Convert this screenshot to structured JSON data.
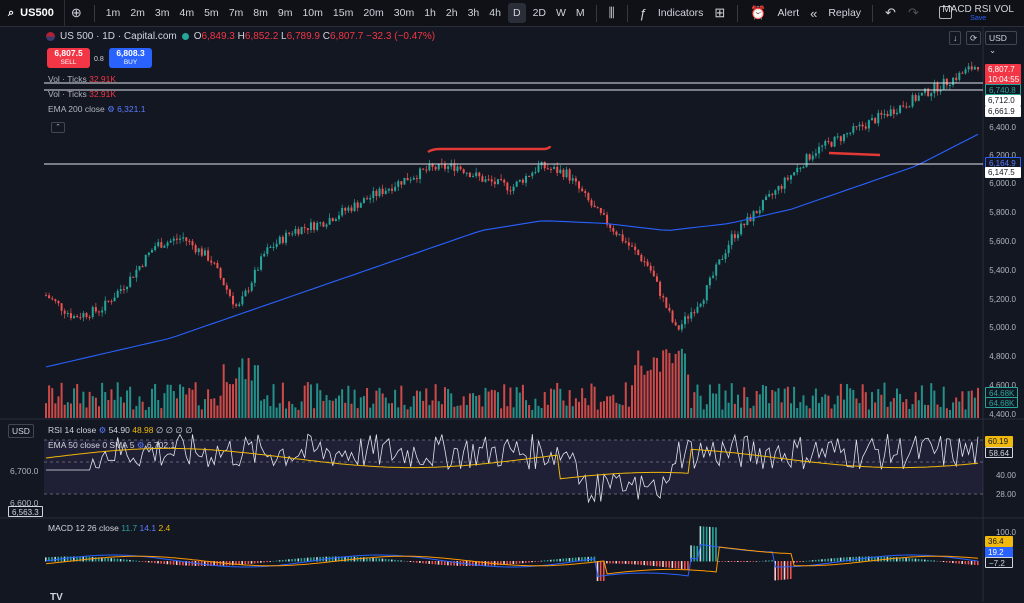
{
  "toolbar": {
    "symbol": "US500",
    "intervals": [
      "1m",
      "2m",
      "3m",
      "4m",
      "5m",
      "7m",
      "8m",
      "9m",
      "10m",
      "15m",
      "20m",
      "30m",
      "1h",
      "2h",
      "3h",
      "4h",
      "D",
      "2D",
      "W",
      "M"
    ],
    "active_interval": "D",
    "indicators_label": "Indicators",
    "alert_label": "Alert",
    "replay_label": "Replay",
    "layout_name": "MACD RSI VOL",
    "save_label": "Save"
  },
  "header": {
    "title": "US 500 · 1D · Capital.com",
    "open": "6,849.3",
    "high": "6,852.2",
    "low": "6,789.9",
    "close": "6,807.7",
    "change": "−32.3 (−0.47%)",
    "sell_price": "6,807.5",
    "sell_label": "SELL",
    "spread": "0.8",
    "buy_price": "6,808.3",
    "buy_label": "BUY"
  },
  "legends": {
    "vol1_name": "Vol · Ticks",
    "vol1_value": "32.91K",
    "vol2_name": "Vol · Ticks",
    "vol2_value": "32.91K",
    "ema_name": "EMA 200 close",
    "ema_value": "6,321.1",
    "rsi_name": "RSI 14 close",
    "rsi_v1": "54.90",
    "rsi_v2": "48.98",
    "rsi_rest": "∅ ∅ ∅ ∅",
    "ema50_name": "EMA 50 close 0 SMA 5",
    "ema50_value": "6,702.1",
    "macd_name": "MACD 12 26 close",
    "macd_v1": "11.7",
    "macd_v2": "14.1",
    "macd_v3": "2.4",
    "currency": "USD",
    "currency_left": "USD"
  },
  "price_axis": {
    "labels": [
      "6,400.0",
      "6,200.0",
      "6,000.0",
      "5,800.0",
      "5,600.0",
      "5,400.0",
      "5,200.0",
      "5,000.0",
      "4,800.0",
      "4,600.0",
      "4,400.0"
    ],
    "last_price": "6,807.7",
    "countdown": "10:04:55",
    "p_6740": "6,740.8",
    "p_6712": "6,712.0",
    "p_6661": "6,661.9",
    "p_6164": "6,164.9",
    "p_6147": "6,147.5",
    "vol_a": "64.68K",
    "vol_b": "64.68K"
  },
  "rsi_axis": {
    "l1": "60.19",
    "l2": "58.64",
    "l3": "40.00",
    "l4": "28.00",
    "left1": "6,700.0",
    "left2": "6,600.0",
    "left3": "6,563.3"
  },
  "macd_axis": {
    "l1": "100.0",
    "l2": "36.4",
    "l3": "19.2",
    "l4": "−7.2"
  },
  "chart_data": {
    "type": "candlestick",
    "series": [
      {
        "name": "US 500",
        "approx_close_path": [
          5200,
          5050,
          5100,
          5300,
          5550,
          5600,
          5450,
          5100,
          5500,
          5650,
          5700,
          5800,
          5900,
          6000,
          6080,
          6100,
          6000,
          5950,
          6100,
          6050,
          5800,
          5600,
          5400,
          4950,
          5200,
          5600,
          5800,
          6000,
          6200,
          6300,
          6400,
          6500,
          6600,
          6700,
          6807.7
        ]
      },
      {
        "name": "EMA 200 close",
        "approx_path": [
          4700,
          4800,
          4900,
          5050,
          5200,
          5350,
          5500,
          5650,
          5720,
          5700,
          5650,
          5700,
          5800,
          5950,
          6100,
          6321.1
        ]
      }
    ],
    "ylim": [
      4400,
      6900
    ],
    "annotations": [
      "horizontal line 6,164.9",
      "horizontal line 6,740.8",
      "horizontal line 6,712.0"
    ]
  },
  "colors": {
    "up": "#26a69a",
    "down": "#ef5350",
    "ema": "#2962ff",
    "rsi": "#e0e3eb",
    "rsi_ma": "#f0b90b"
  }
}
